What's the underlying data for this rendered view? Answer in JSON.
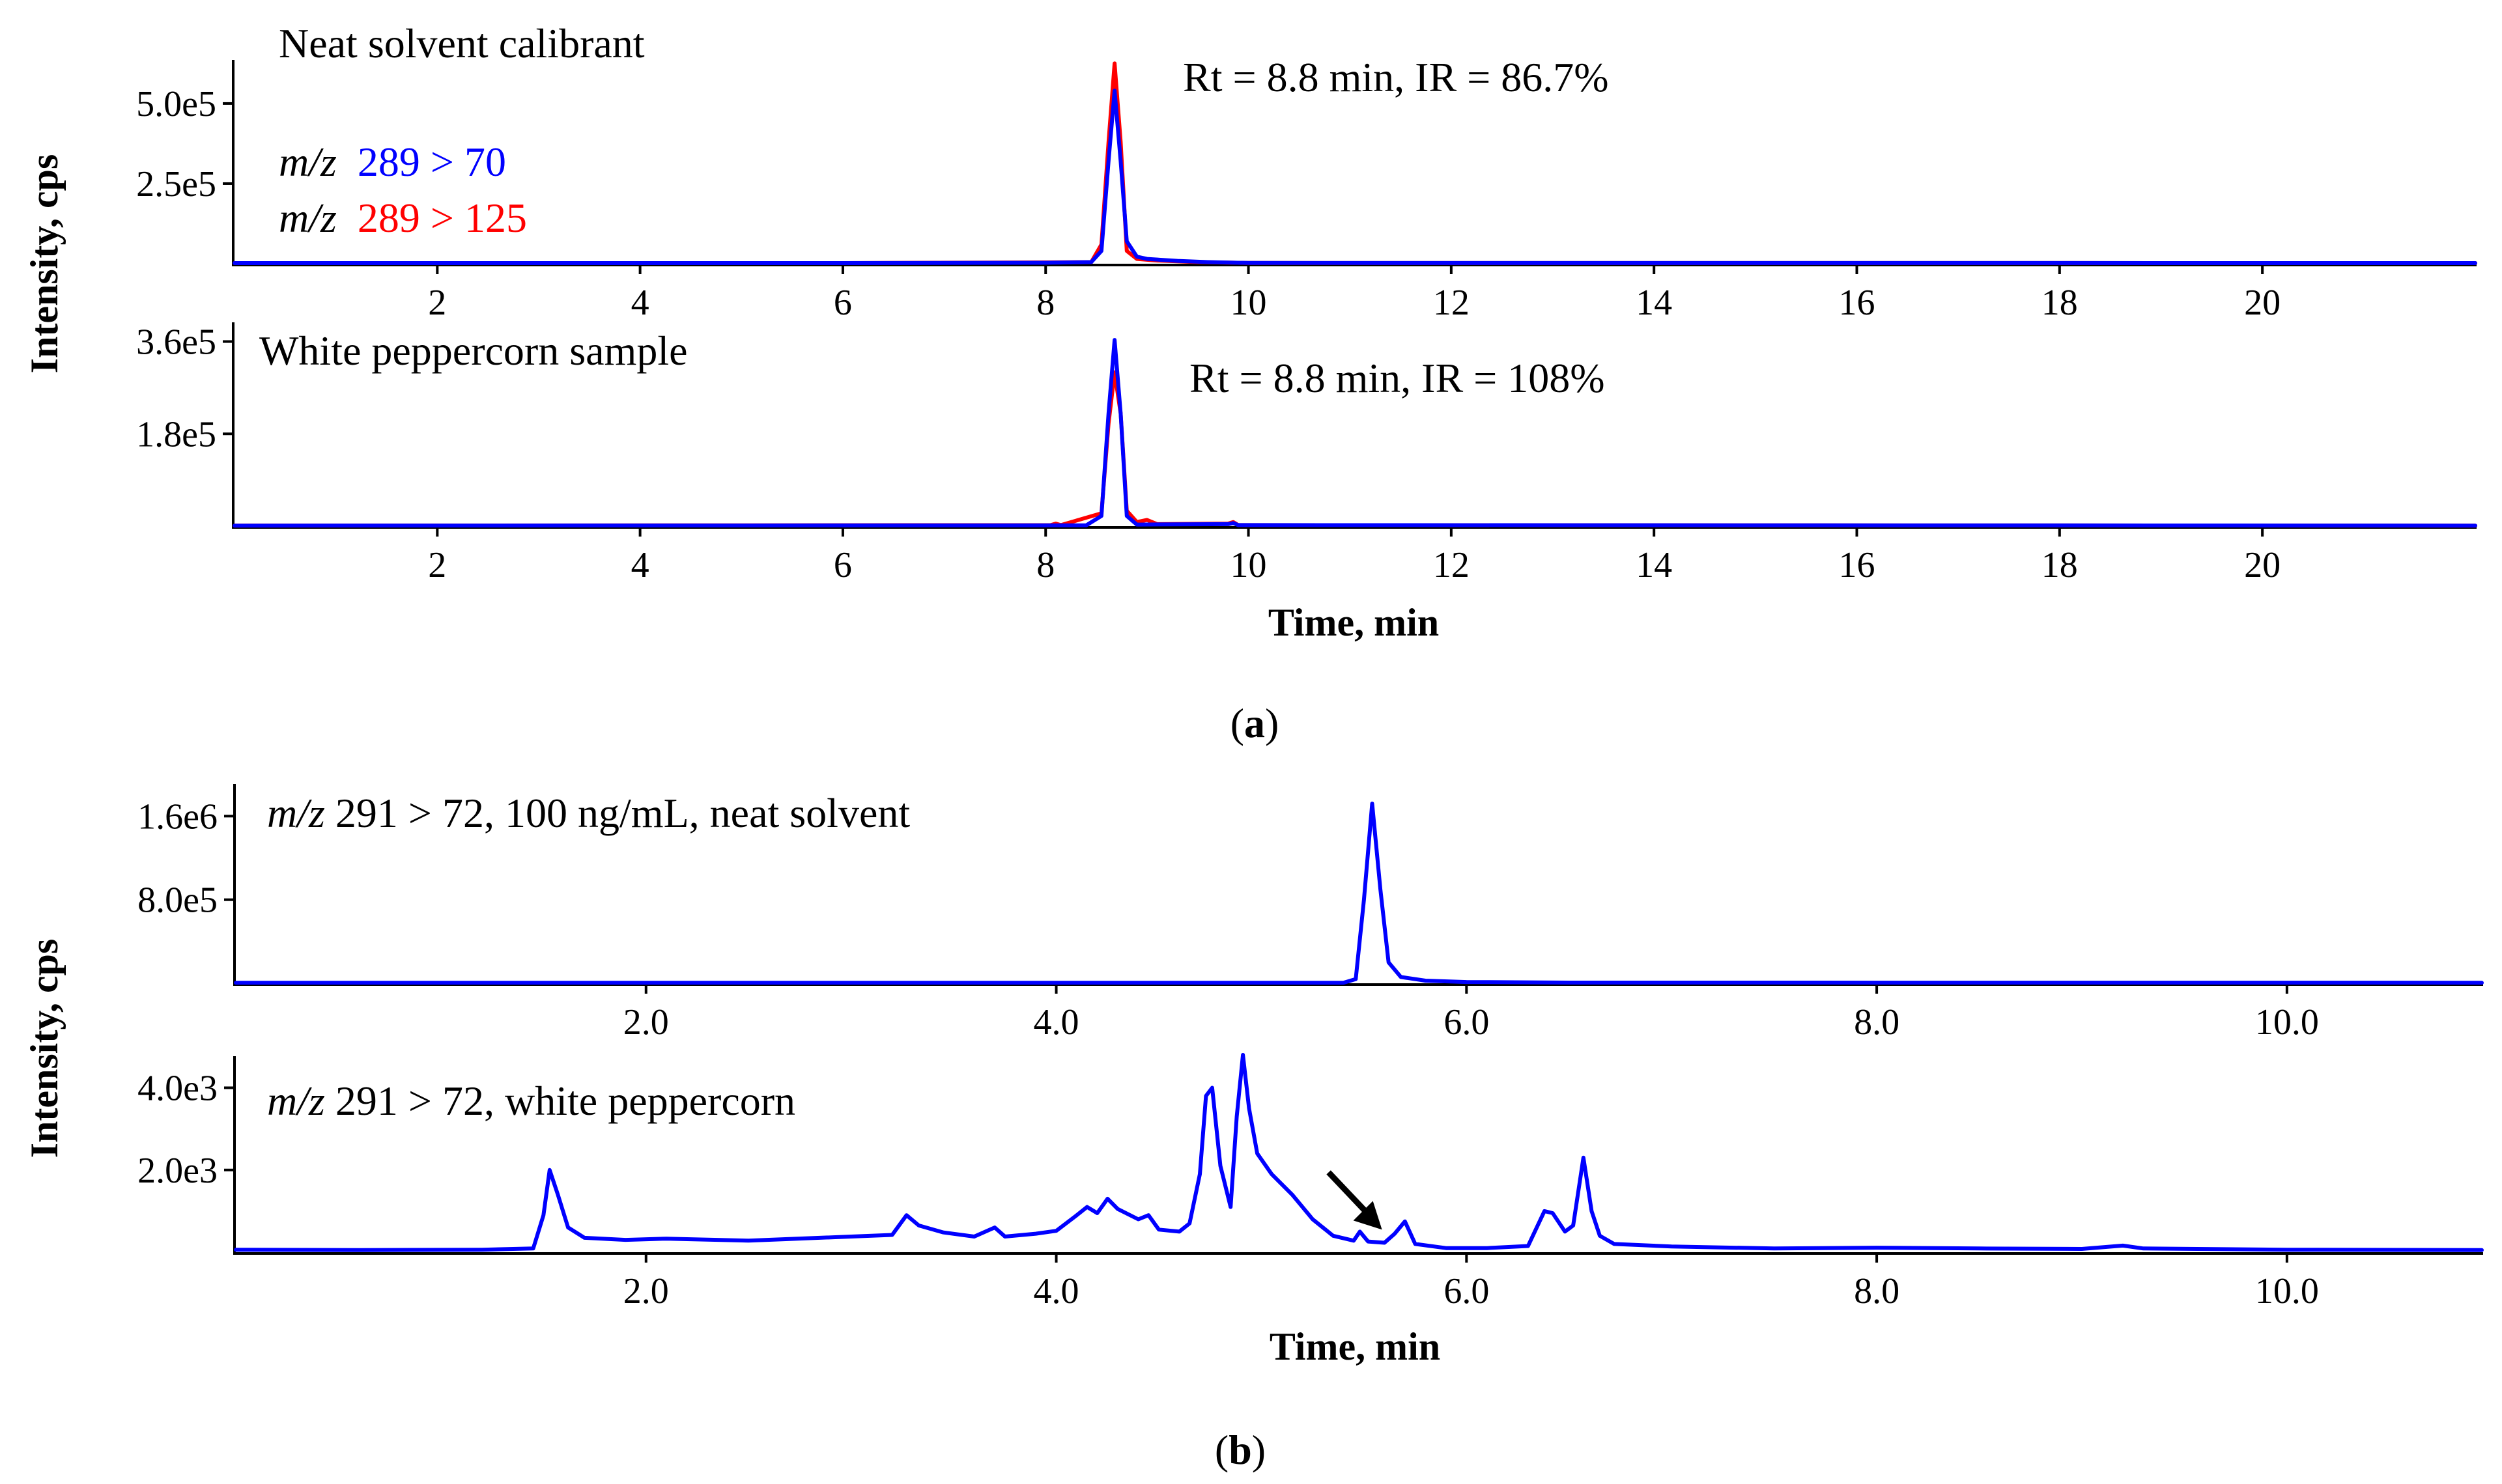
{
  "colors": {
    "quantifier": "#0000FF",
    "qualifier": "#FF0000",
    "axis": "#000000"
  },
  "figure": {
    "panel_a": {
      "caption_open": "(",
      "caption_letter": "a",
      "caption_close": ")",
      "ylabel": "Intensity, cps",
      "xlabel": "Time, min",
      "legend": {
        "mz_prefix": "m/z",
        "quant": "289 > 70",
        "qual": "289 > 125"
      },
      "top": {
        "title": "Neat solvent calibrant",
        "annotation": "Rt = 8.8 min, IR = 86.7%",
        "yticks": [
          "2.5e5",
          "5.0e5"
        ],
        "xticks": [
          "2",
          "4",
          "6",
          "8",
          "10",
          "12",
          "14",
          "16",
          "18",
          "20"
        ]
      },
      "bottom": {
        "title": "White peppercorn sample",
        "annotation": "Rt = 8.8 min, IR = 108%",
        "yticks": [
          "1.8e5",
          "3.6e5"
        ],
        "xticks": [
          "2",
          "4",
          "6",
          "8",
          "10",
          "12",
          "14",
          "16",
          "18",
          "20"
        ]
      }
    },
    "panel_b": {
      "caption_open": "(",
      "caption_letter": "b",
      "caption_close": ")",
      "ylabel": "Intensity, cps",
      "xlabel": "Time, min",
      "top": {
        "mz_prefix": "m/z",
        "label": " 291 > 72, 100 ng/mL, neat solvent",
        "yticks": [
          "8.0e5",
          "1.6e6"
        ],
        "xticks": [
          "2.0",
          "4.0",
          "6.0",
          "8.0",
          "10.0"
        ]
      },
      "bottom": {
        "mz_prefix": "m/z",
        "label": " 291 > 72, white peppercorn",
        "yticks": [
          "2.0e3",
          "4.0e3"
        ],
        "xticks": [
          "2.0",
          "4.0",
          "6.0",
          "8.0",
          "10.0"
        ]
      }
    }
  },
  "chart_data": [
    {
      "type": "line",
      "id": "a_top",
      "title": "Neat solvent calibrant",
      "xlabel": "Time, min",
      "ylabel": "Intensity, cps",
      "xlim": [
        0,
        22.1
      ],
      "ylim": [
        0,
        640000.0
      ],
      "series": [
        {
          "name": "m/z 289 > 70",
          "color": "#0000FF",
          "points": [
            [
              0,
              2000
            ],
            [
              6,
              2000
            ],
            [
              8.0,
              3000
            ],
            [
              8.45,
              5000
            ],
            [
              8.55,
              40000
            ],
            [
              8.62,
              320000
            ],
            [
              8.68,
              540000
            ],
            [
              8.74,
              320000
            ],
            [
              8.8,
              70000
            ],
            [
              8.9,
              22000
            ],
            [
              9.0,
              15000
            ],
            [
              9.3,
              9000
            ],
            [
              9.6,
              5000
            ],
            [
              10.0,
              2500
            ],
            [
              22.1,
              2000
            ]
          ]
        },
        {
          "name": "m/z 289 > 125",
          "color": "#FF0000",
          "points": [
            [
              0,
              2000
            ],
            [
              6,
              2000
            ],
            [
              8.0,
              4000
            ],
            [
              8.45,
              5000
            ],
            [
              8.55,
              60000
            ],
            [
              8.62,
              380000
            ],
            [
              8.68,
              625000
            ],
            [
              8.74,
              380000
            ],
            [
              8.8,
              40000
            ],
            [
              8.9,
              15000
            ],
            [
              9.1,
              10000
            ],
            [
              9.5,
              5000
            ],
            [
              10.0,
              2500
            ],
            [
              22.1,
              2000
            ]
          ]
        }
      ]
    },
    {
      "type": "line",
      "id": "a_bottom",
      "title": "White peppercorn sample",
      "xlabel": "Time, min",
      "ylabel": "Intensity, cps",
      "xlim": [
        0,
        22.1
      ],
      "ylim": [
        0,
        400000.0
      ],
      "series": [
        {
          "name": "m/z 289 > 70",
          "color": "#0000FF",
          "points": [
            [
              0,
              1000
            ],
            [
              8.4,
              1500
            ],
            [
              8.55,
              20000
            ],
            [
              8.62,
              220000
            ],
            [
              8.68,
              363000
            ],
            [
              8.74,
              220000
            ],
            [
              8.8,
              20000
            ],
            [
              8.9,
              3000
            ],
            [
              9.8,
              4000
            ],
            [
              9.85,
              6000
            ],
            [
              9.9,
              2000
            ],
            [
              22.1,
              1000
            ]
          ]
        },
        {
          "name": "m/z 289 > 125",
          "color": "#FF0000",
          "points": [
            [
              0,
              1000
            ],
            [
              8.05,
              2000
            ],
            [
              8.1,
              5000
            ],
            [
              8.15,
              2000
            ],
            [
              8.55,
              25000
            ],
            [
              8.62,
              200000
            ],
            [
              8.68,
              300000
            ],
            [
              8.74,
              220000
            ],
            [
              8.8,
              30000
            ],
            [
              8.9,
              8000
            ],
            [
              9.0,
              12000
            ],
            [
              9.1,
              4000
            ],
            [
              9.8,
              5000
            ],
            [
              9.85,
              8000
            ],
            [
              9.9,
              2000
            ],
            [
              22.1,
              1000
            ]
          ]
        }
      ]
    },
    {
      "type": "line",
      "id": "b_top",
      "title": "m/z 291 > 72, 100 ng/mL, neat solvent",
      "xlabel": "Time, min",
      "ylabel": "Intensity, cps",
      "xlim": [
        0,
        10.95
      ],
      "ylim": [
        0,
        1920000.0
      ],
      "series": [
        {
          "name": "m/z 291 > 72",
          "color": "#0000FF",
          "points": [
            [
              0,
              5000
            ],
            [
              5.4,
              5000
            ],
            [
              5.46,
              40000
            ],
            [
              5.5,
              800000
            ],
            [
              5.54,
              1720000
            ],
            [
              5.58,
              900000
            ],
            [
              5.62,
              200000
            ],
            [
              5.68,
              60000
            ],
            [
              5.8,
              25000
            ],
            [
              6.0,
              12000
            ],
            [
              6.5,
              6000
            ],
            [
              10.95,
              5000
            ]
          ]
        }
      ]
    },
    {
      "type": "line",
      "id": "b_bottom",
      "title": "m/z 291 > 72, white peppercorn",
      "xlabel": "Time, min",
      "ylabel": "Intensity, cps",
      "xlim": [
        0,
        10.95
      ],
      "ylim": [
        0,
        4800.0
      ],
      "series": [
        {
          "name": "m/z 291 > 72",
          "color": "#0000FF",
          "points": [
            [
              0,
              60
            ],
            [
              0.6,
              50
            ],
            [
              1.2,
              60
            ],
            [
              1.45,
              90
            ],
            [
              1.5,
              900
            ],
            [
              1.53,
              2000
            ],
            [
              1.57,
              1400
            ],
            [
              1.62,
              600
            ],
            [
              1.7,
              350
            ],
            [
              1.9,
              300
            ],
            [
              2.1,
              330
            ],
            [
              2.5,
              280
            ],
            [
              3.0,
              380
            ],
            [
              3.2,
              420
            ],
            [
              3.27,
              900
            ],
            [
              3.33,
              650
            ],
            [
              3.45,
              480
            ],
            [
              3.6,
              380
            ],
            [
              3.7,
              600
            ],
            [
              3.75,
              380
            ],
            [
              3.9,
              450
            ],
            [
              4.0,
              520
            ],
            [
              4.1,
              900
            ],
            [
              4.15,
              1100
            ],
            [
              4.2,
              950
            ],
            [
              4.25,
              1300
            ],
            [
              4.3,
              1050
            ],
            [
              4.4,
              800
            ],
            [
              4.45,
              900
            ],
            [
              4.5,
              550
            ],
            [
              4.6,
              500
            ],
            [
              4.65,
              700
            ],
            [
              4.7,
              1900
            ],
            [
              4.73,
              3800
            ],
            [
              4.76,
              4000
            ],
            [
              4.8,
              2100
            ],
            [
              4.85,
              1100
            ],
            [
              4.88,
              3300
            ],
            [
              4.91,
              4800
            ],
            [
              4.94,
              3500
            ],
            [
              4.98,
              2400
            ],
            [
              5.05,
              1900
            ],
            [
              5.15,
              1400
            ],
            [
              5.25,
              800
            ],
            [
              5.35,
              400
            ],
            [
              5.45,
              280
            ],
            [
              5.48,
              500
            ],
            [
              5.52,
              260
            ],
            [
              5.6,
              230
            ],
            [
              5.65,
              450
            ],
            [
              5.7,
              750
            ],
            [
              5.75,
              200
            ],
            [
              5.9,
              100
            ],
            [
              6.1,
              100
            ],
            [
              6.3,
              150
            ],
            [
              6.38,
              1000
            ],
            [
              6.42,
              950
            ],
            [
              6.48,
              500
            ],
            [
              6.52,
              650
            ],
            [
              6.57,
              2300
            ],
            [
              6.61,
              1000
            ],
            [
              6.65,
              400
            ],
            [
              6.72,
              200
            ],
            [
              7.0,
              140
            ],
            [
              7.5,
              90
            ],
            [
              8.0,
              110
            ],
            [
              8.5,
              90
            ],
            [
              9.0,
              80
            ],
            [
              9.2,
              160
            ],
            [
              9.3,
              90
            ],
            [
              10.0,
              60
            ],
            [
              10.95,
              50
            ]
          ]
        }
      ],
      "annotations": [
        {
          "type": "arrow",
          "x": 5.55,
          "y": 200
        }
      ]
    }
  ]
}
